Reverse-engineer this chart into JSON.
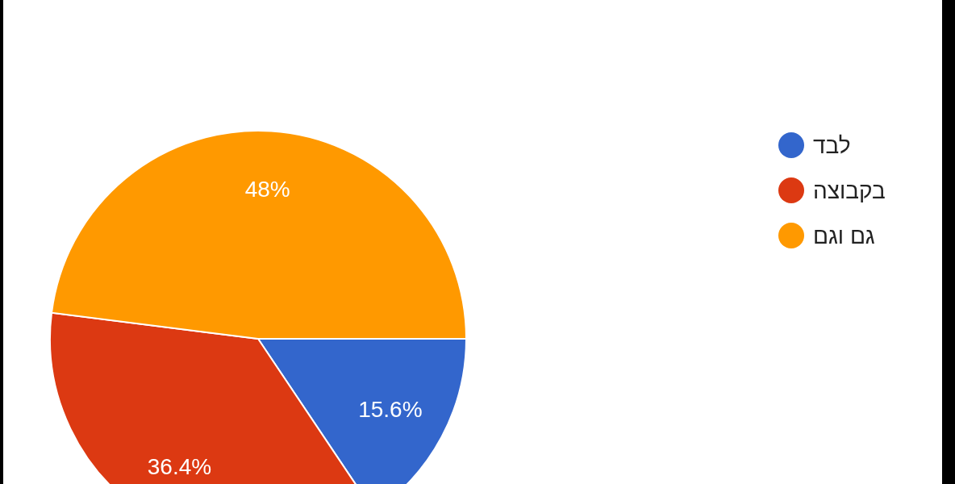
{
  "chart_data": {
    "type": "pie",
    "categories": [
      "לבד",
      "בקבוצה",
      "גם וגם"
    ],
    "values": [
      15.6,
      36.4,
      48
    ],
    "colors": [
      "#3366cc",
      "#dc3912",
      "#ff9900"
    ],
    "value_labels": [
      "15.6%",
      "36.4%",
      "48%"
    ],
    "legend": "top right"
  }
}
